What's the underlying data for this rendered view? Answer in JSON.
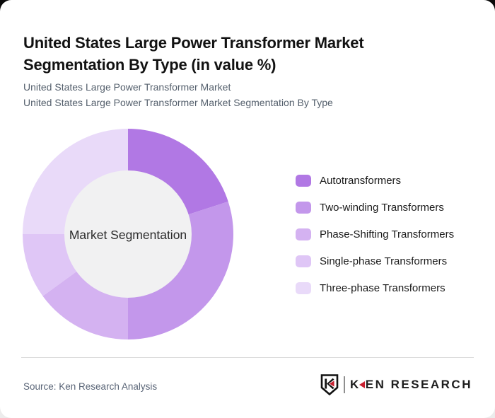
{
  "header": {
    "title": "United States Large Power Transformer Market Segmentation By Type (in value %)",
    "subtitle_line1": "United States Large Power Transformer Market",
    "subtitle_line2": "United States Large Power Transformer Market Segmentation By Type"
  },
  "chart_data": {
    "type": "pie",
    "donut": true,
    "title": "United States Large Power Transformer Market Segmentation By Type (in value %)",
    "center_label": "Market Segmentation",
    "start_angle_deg": 0,
    "direction": "clockwise",
    "legend_position": "right",
    "inner_circle_color": "#f1f1f2",
    "segments": [
      {
        "label": "Autotransformers",
        "value": 20,
        "color": "#b178e4"
      },
      {
        "label": "Two-winding Transformers",
        "value": 30,
        "color": "#c397eb"
      },
      {
        "label": "Phase-Shifting Transformers",
        "value": 15,
        "color": "#d4b2f1"
      },
      {
        "label": "Single-phase Transformers",
        "value": 10,
        "color": "#dfc6f6"
      },
      {
        "label": "Three-phase Transformers",
        "value": 25,
        "color": "#e9daf9"
      }
    ]
  },
  "footer": {
    "source": "Source: Ken Research Analysis",
    "logo": {
      "first_letter": "K",
      "rest": "EN RESEARCH",
      "accent_color": "#c8202f",
      "text_color": "#1d1d1d"
    }
  }
}
